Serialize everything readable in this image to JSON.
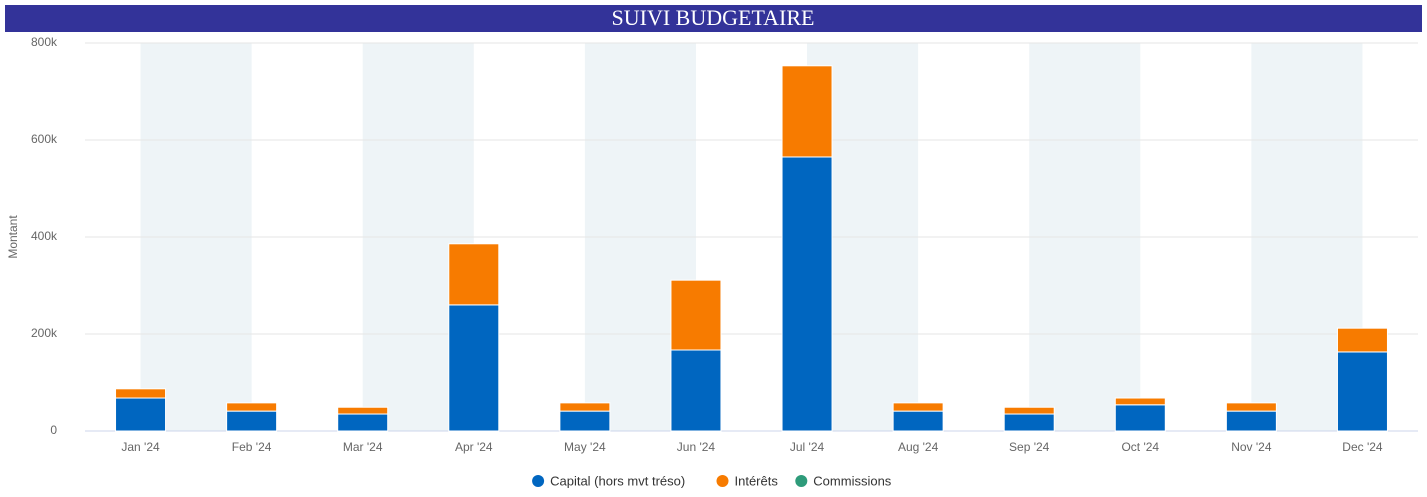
{
  "chart_data": {
    "type": "bar",
    "stacked": true,
    "title": "SUIVI BUDGETAIRE",
    "y_label": "Montant",
    "categories": [
      "Jan '24",
      "Feb '24",
      "Mar '24",
      "Apr '24",
      "May '24",
      "Jun '24",
      "Jul '24",
      "Aug '24",
      "Sep '24",
      "Oct '24",
      "Nov '24",
      "Dec '24"
    ],
    "series": [
      {
        "name": "Capital (hors mvt tréso)",
        "color": "#0066c0",
        "values": [
          68000,
          41000,
          35000,
          260000,
          41000,
          167000,
          565000,
          41000,
          35000,
          54000,
          41000,
          163000
        ]
      },
      {
        "name": "Intérêts",
        "color": "#f77b00",
        "values": [
          19000,
          17000,
          14000,
          126000,
          17000,
          144000,
          188000,
          17000,
          14000,
          14000,
          17000,
          49000
        ]
      },
      {
        "name": "Commissions",
        "color": "#2e9b7a",
        "values": [
          0,
          0,
          0,
          0,
          0,
          0,
          0,
          0,
          0,
          0,
          0,
          0
        ]
      }
    ],
    "ylim": [
      0,
      800000
    ],
    "yticks": [
      0,
      {
        "value": 200000,
        "label": "200k"
      },
      {
        "value": 400000,
        "label": "400k"
      },
      {
        "value": 600000,
        "label": "600k"
      },
      {
        "value": 800000,
        "label": "800k"
      }
    ],
    "grid": true,
    "legend": "bottom"
  }
}
